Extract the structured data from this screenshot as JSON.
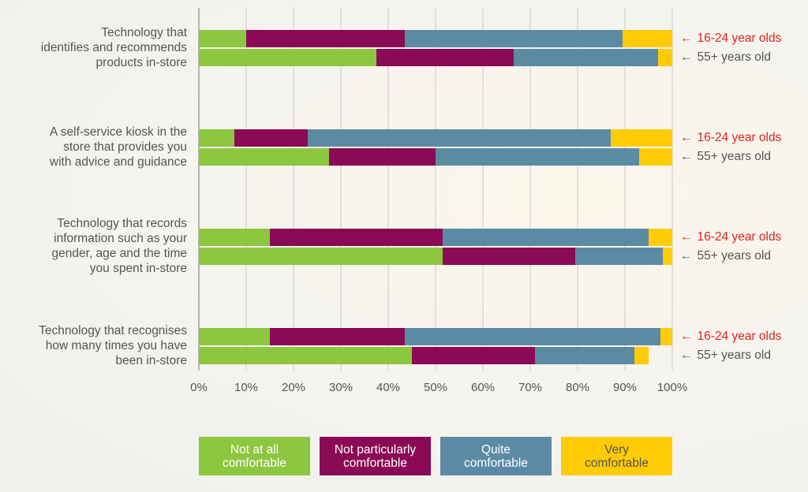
{
  "chart_data": {
    "type": "bar",
    "stacked": true,
    "orientation": "horizontal",
    "xlim": [
      0,
      100
    ],
    "x_ticks": [
      "0%",
      "10%",
      "20%",
      "30%",
      "40%",
      "50%",
      "60%",
      "70%",
      "80%",
      "90%",
      "100%"
    ],
    "grid": true,
    "legend_position": "bottom",
    "series_names": [
      "Not at all comfortable",
      "Not particularly comfortable",
      "Quite comfortable",
      "Very comfortable"
    ],
    "series_colors": [
      "#8dc63f",
      "#8b0a55",
      "#5b8ba3",
      "#ffcb05"
    ],
    "groups": [
      {
        "name": "16-24 year olds",
        "color": "#e2231a"
      },
      {
        "name": "55+ years old",
        "color": "#555555"
      }
    ],
    "questions": [
      {
        "label": "Technology that\nidentifies and recommends\nproducts in-store",
        "rows": [
          [
            10,
            33.5,
            46,
            10.5
          ],
          [
            37.5,
            29,
            30.5,
            3
          ]
        ]
      },
      {
        "label": "A self-service kiosk in the\nstore that provides you\nwith advice and guidance",
        "rows": [
          [
            7.5,
            15.5,
            64,
            13
          ],
          [
            27.5,
            22.5,
            43,
            7
          ]
        ]
      },
      {
        "label": "Technology that records\ninformation such as your\ngender, age and the time\nyou spent in-store",
        "rows": [
          [
            15,
            36.5,
            43.5,
            5
          ],
          [
            51.5,
            28,
            18.5,
            2
          ]
        ]
      },
      {
        "label": "Technology that recognises\nhow many times you have\nbeen in-store",
        "rows": [
          [
            15,
            28.5,
            54,
            2.5
          ],
          [
            45,
            26,
            21,
            3
          ]
        ]
      }
    ]
  },
  "legend": [
    {
      "label": "Not at all\ncomfortable",
      "bg": "#8dc63f",
      "fg": "#ffffff"
    },
    {
      "label": "Not particularly\ncomfortable",
      "bg": "#8b0a55",
      "fg": "#ffffff"
    },
    {
      "label": "Quite\ncomfortable",
      "bg": "#5b8ba3",
      "fg": "#ffffff"
    },
    {
      "label": "Very\ncomfortable",
      "bg": "#ffcb05",
      "fg": "#555555"
    }
  ]
}
